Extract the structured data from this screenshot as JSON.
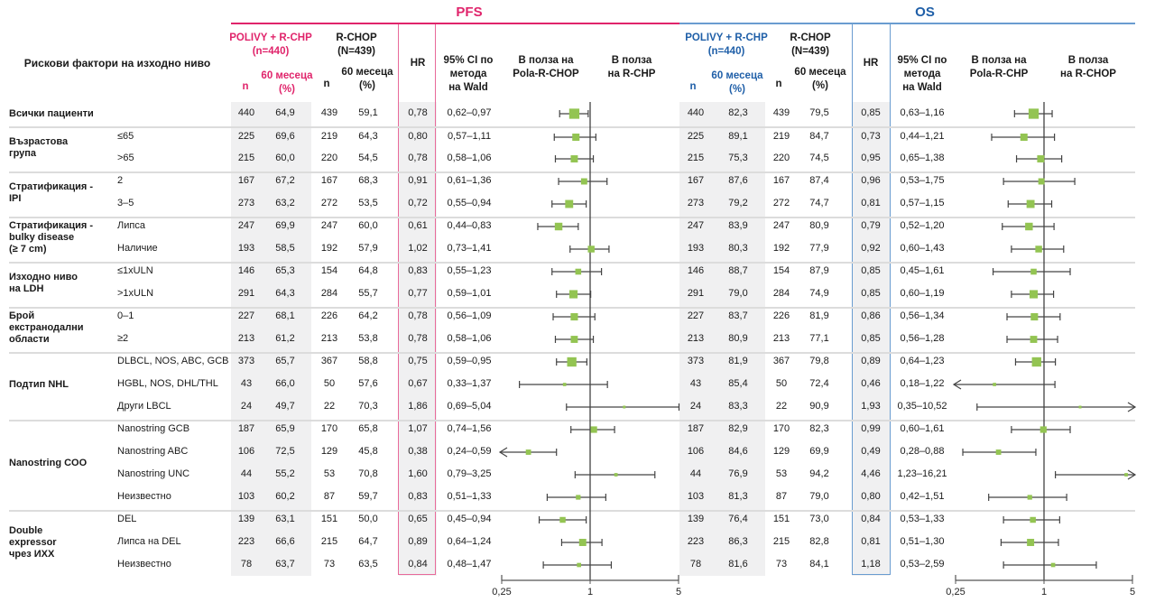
{
  "sections": {
    "pfs": "PFS",
    "os": "OS"
  },
  "header": {
    "risk_factor": "Рискови фактори на изходно ниво",
    "pfs": {
      "arm1": "POLIVY + R-CHP",
      "arm1_n": "(n=440)",
      "arm2": "R-CHOP",
      "arm2_n": "(N=439)",
      "n": "n",
      "m60a": "60 месеца",
      "m60b": "(%)",
      "hr": "HR",
      "ci_a": "95% CI по",
      "ci_b": "метода",
      "ci_c": "на Wald",
      "favor1_a": "В полза на",
      "favor1_b": "Pola-R-CHOP",
      "favor2_a": "В полза",
      "favor2_b": "на R-CHP"
    },
    "os": {
      "arm1": "POLIVY + R-CHP",
      "arm1_n": "(n=440)",
      "arm2": "R-CHOP",
      "arm2_n": "(N=439)",
      "n": "n",
      "m60a": "60 месеца",
      "m60b": "(%)",
      "hr": "HR",
      "ci_a": "95% CI по",
      "ci_b": "метода",
      "ci_c": "на Wald",
      "favor1_a": "В полза на",
      "favor1_b": "Pola-R-CHP",
      "favor2_a": "В полза",
      "favor2_b": "на R-CHOP"
    }
  },
  "groups": [
    {
      "label": [
        "Всички пациенти"
      ],
      "rows": [
        0
      ]
    },
    {
      "label": [
        "Възрастова",
        "група"
      ],
      "rows": [
        1,
        2
      ]
    },
    {
      "label": [
        "Стратификация -",
        "IPI"
      ],
      "rows": [
        3,
        4
      ]
    },
    {
      "label": [
        "Стратификация -",
        "bulky disease",
        "(≥ 7 cm)"
      ],
      "rows": [
        5,
        6
      ]
    },
    {
      "label": [
        "Изходно ниво",
        "на LDH"
      ],
      "rows": [
        7,
        8
      ]
    },
    {
      "label": [
        "Брой",
        "екстранодални",
        "области"
      ],
      "rows": [
        9,
        10
      ]
    },
    {
      "label": [
        "Подтип NHL"
      ],
      "rows": [
        11,
        12,
        13
      ]
    },
    {
      "label": [
        "Nanostring COO"
      ],
      "rows": [
        14,
        15,
        16,
        17
      ]
    },
    {
      "label": [
        "Double",
        "expressor",
        "чрез ИХХ"
      ],
      "rows": [
        18,
        19,
        20
      ]
    }
  ],
  "rows": [
    {
      "sub": "",
      "pfs": {
        "n1": "440",
        "p1": "64,9",
        "n2": "439",
        "p2": "59,1",
        "hr": "0,78",
        "ci": "0,62–0,97"
      },
      "os": {
        "n1": "440",
        "p1": "82,3",
        "n2": "439",
        "p2": "79,5",
        "hr": "0,85",
        "ci": "0,63–1,16"
      }
    },
    {
      "sub": "≤65",
      "pfs": {
        "n1": "225",
        "p1": "69,6",
        "n2": "219",
        "p2": "64,3",
        "hr": "0,80",
        "ci": "0,57–1,11"
      },
      "os": {
        "n1": "225",
        "p1": "89,1",
        "n2": "219",
        "p2": "84,7",
        "hr": "0,73",
        "ci": "0,44–1,21"
      }
    },
    {
      "sub": ">65",
      "pfs": {
        "n1": "215",
        "p1": "60,0",
        "n2": "220",
        "p2": "54,5",
        "hr": "0,78",
        "ci": "0,58–1,06"
      },
      "os": {
        "n1": "215",
        "p1": "75,3",
        "n2": "220",
        "p2": "74,5",
        "hr": "0,95",
        "ci": "0,65–1,38"
      }
    },
    {
      "sub": "2",
      "pfs": {
        "n1": "167",
        "p1": "67,2",
        "n2": "167",
        "p2": "68,3",
        "hr": "0,91",
        "ci": "0,61–1,36"
      },
      "os": {
        "n1": "167",
        "p1": "87,6",
        "n2": "167",
        "p2": "87,4",
        "hr": "0,96",
        "ci": "0,53–1,75"
      }
    },
    {
      "sub": "3–5",
      "pfs": {
        "n1": "273",
        "p1": "63,2",
        "n2": "272",
        "p2": "53,5",
        "hr": "0,72",
        "ci": "0,55–0,94"
      },
      "os": {
        "n1": "273",
        "p1": "79,2",
        "n2": "272",
        "p2": "74,7",
        "hr": "0,81",
        "ci": "0,57–1,15"
      }
    },
    {
      "sub": "Липса",
      "pfs": {
        "n1": "247",
        "p1": "69,9",
        "n2": "247",
        "p2": "60,0",
        "hr": "0,61",
        "ci": "0,44–0,83"
      },
      "os": {
        "n1": "247",
        "p1": "83,9",
        "n2": "247",
        "p2": "80,9",
        "hr": "0,79",
        "ci": "0,52–1,20"
      }
    },
    {
      "sub": "Наличие",
      "pfs": {
        "n1": "193",
        "p1": "58,5",
        "n2": "192",
        "p2": "57,9",
        "hr": "1,02",
        "ci": "0,73–1,41"
      },
      "os": {
        "n1": "193",
        "p1": "80,3",
        "n2": "192",
        "p2": "77,9",
        "hr": "0,92",
        "ci": "0,60–1,43"
      }
    },
    {
      "sub": "≤1xULN",
      "pfs": {
        "n1": "146",
        "p1": "65,3",
        "n2": "154",
        "p2": "64,8",
        "hr": "0,83",
        "ci": "0,55–1,23"
      },
      "os": {
        "n1": "146",
        "p1": "88,7",
        "n2": "154",
        "p2": "87,9",
        "hr": "0,85",
        "ci": "0,45–1,61"
      }
    },
    {
      "sub": ">1xULN",
      "pfs": {
        "n1": "291",
        "p1": "64,3",
        "n2": "284",
        "p2": "55,7",
        "hr": "0,77",
        "ci": "0,59–1,01"
      },
      "os": {
        "n1": "291",
        "p1": "79,0",
        "n2": "284",
        "p2": "74,9",
        "hr": "0,85",
        "ci": "0,60–1,19"
      }
    },
    {
      "sub": "0–1",
      "pfs": {
        "n1": "227",
        "p1": "68,1",
        "n2": "226",
        "p2": "64,2",
        "hr": "0,78",
        "ci": "0,56–1,09"
      },
      "os": {
        "n1": "227",
        "p1": "83,7",
        "n2": "226",
        "p2": "81,9",
        "hr": "0,86",
        "ci": "0,56–1,34"
      }
    },
    {
      "sub": "≥2",
      "pfs": {
        "n1": "213",
        "p1": "61,2",
        "n2": "213",
        "p2": "53,8",
        "hr": "0,78",
        "ci": "0,58–1,06"
      },
      "os": {
        "n1": "213",
        "p1": "80,9",
        "n2": "213",
        "p2": "77,1",
        "hr": "0,85",
        "ci": "0,56–1,28"
      }
    },
    {
      "sub": "DLBCL, NOS, ABC, GCB",
      "pfs": {
        "n1": "373",
        "p1": "65,7",
        "n2": "367",
        "p2": "58,8",
        "hr": "0,75",
        "ci": "0,59–0,95"
      },
      "os": {
        "n1": "373",
        "p1": "81,9",
        "n2": "367",
        "p2": "79,8",
        "hr": "0,89",
        "ci": "0,64–1,23"
      }
    },
    {
      "sub": "HGBL, NOS, DHL/THL",
      "pfs": {
        "n1": "43",
        "p1": "66,0",
        "n2": "50",
        "p2": "57,6",
        "hr": "0,67",
        "ci": "0,33–1,37"
      },
      "os": {
        "n1": "43",
        "p1": "85,4",
        "n2": "50",
        "p2": "72,4",
        "hr": "0,46",
        "ci": "0,18–1,22"
      }
    },
    {
      "sub": "Други LBCL",
      "pfs": {
        "n1": "24",
        "p1": "49,7",
        "n2": "22",
        "p2": "70,3",
        "hr": "1,86",
        "ci": "0,69–5,04"
      },
      "os": {
        "n1": "24",
        "p1": "83,3",
        "n2": "22",
        "p2": "90,9",
        "hr": "1,93",
        "ci": "0,35–10,52"
      }
    },
    {
      "sub": "Nanostring GCB",
      "pfs": {
        "n1": "187",
        "p1": "65,9",
        "n2": "170",
        "p2": "65,8",
        "hr": "1,07",
        "ci": "0,74–1,56"
      },
      "os": {
        "n1": "187",
        "p1": "82,9",
        "n2": "170",
        "p2": "82,3",
        "hr": "0,99",
        "ci": "0,60–1,61"
      }
    },
    {
      "sub": "Nanostring ABC",
      "pfs": {
        "n1": "106",
        "p1": "72,5",
        "n2": "129",
        "p2": "45,8",
        "hr": "0,38",
        "ci": "0,24–0,59"
      },
      "os": {
        "n1": "106",
        "p1": "84,6",
        "n2": "129",
        "p2": "69,9",
        "hr": "0,49",
        "ci": "0,28–0,88"
      }
    },
    {
      "sub": "Nanostring UNC",
      "pfs": {
        "n1": "44",
        "p1": "55,2",
        "n2": "53",
        "p2": "70,8",
        "hr": "1,60",
        "ci": "0,79–3,25"
      },
      "os": {
        "n1": "44",
        "p1": "76,9",
        "n2": "53",
        "p2": "94,2",
        "hr": "4,46",
        "ci": "1,23–16,21"
      }
    },
    {
      "sub": "Неизвестно",
      "pfs": {
        "n1": "103",
        "p1": "60,2",
        "n2": "87",
        "p2": "59,7",
        "hr": "0,83",
        "ci": "0,51–1,33"
      },
      "os": {
        "n1": "103",
        "p1": "81,3",
        "n2": "87",
        "p2": "79,0",
        "hr": "0,80",
        "ci": "0,42–1,51"
      }
    },
    {
      "sub": "DEL",
      "pfs": {
        "n1": "139",
        "p1": "63,1",
        "n2": "151",
        "p2": "50,0",
        "hr": "0,65",
        "ci": "0,45–0,94"
      },
      "os": {
        "n1": "139",
        "p1": "76,4",
        "n2": "151",
        "p2": "73,0",
        "hr": "0,84",
        "ci": "0,53–1,33"
      }
    },
    {
      "sub": "Липса на DEL",
      "pfs": {
        "n1": "223",
        "p1": "66,6",
        "n2": "215",
        "p2": "64,7",
        "hr": "0,89",
        "ci": "0,64–1,24"
      },
      "os": {
        "n1": "223",
        "p1": "86,3",
        "n2": "215",
        "p2": "82,8",
        "hr": "0,81",
        "ci": "0,51–1,30"
      }
    },
    {
      "sub": "Неизвестно",
      "pfs": {
        "n1": "78",
        "p1": "63,7",
        "n2": "73",
        "p2": "63,5",
        "hr": "0,84",
        "ci": "0,48–1,47"
      },
      "os": {
        "n1": "78",
        "p1": "81,6",
        "n2": "73",
        "p2": "84,1",
        "hr": "1,18",
        "ci": "0,53–2,59"
      }
    }
  ],
  "chart_data": [
    {
      "type": "forest",
      "title": "PFS",
      "scale": "log",
      "xlim": [
        0.25,
        5
      ],
      "ticks": [
        "0,25",
        "1",
        "5"
      ],
      "reference_line": 1,
      "xlabel_left": "В полза на Pola-R-CHOP",
      "xlabel_right": "В полза на R-CHP",
      "points": [
        {
          "hr": 0.78,
          "lo": 0.62,
          "hi": 0.97,
          "n": 879
        },
        {
          "hr": 0.8,
          "lo": 0.57,
          "hi": 1.11,
          "n": 444
        },
        {
          "hr": 0.78,
          "lo": 0.58,
          "hi": 1.06,
          "n": 435
        },
        {
          "hr": 0.91,
          "lo": 0.61,
          "hi": 1.36,
          "n": 334
        },
        {
          "hr": 0.72,
          "lo": 0.55,
          "hi": 0.94,
          "n": 545
        },
        {
          "hr": 0.61,
          "lo": 0.44,
          "hi": 0.83,
          "n": 494
        },
        {
          "hr": 1.02,
          "lo": 0.73,
          "hi": 1.41,
          "n": 385
        },
        {
          "hr": 0.83,
          "lo": 0.55,
          "hi": 1.23,
          "n": 300
        },
        {
          "hr": 0.77,
          "lo": 0.59,
          "hi": 1.01,
          "n": 575
        },
        {
          "hr": 0.78,
          "lo": 0.56,
          "hi": 1.09,
          "n": 453
        },
        {
          "hr": 0.78,
          "lo": 0.58,
          "hi": 1.06,
          "n": 426
        },
        {
          "hr": 0.75,
          "lo": 0.59,
          "hi": 0.95,
          "n": 740
        },
        {
          "hr": 0.67,
          "lo": 0.33,
          "hi": 1.37,
          "n": 93
        },
        {
          "hr": 1.86,
          "lo": 0.69,
          "hi": 5.04,
          "n": 46
        },
        {
          "hr": 1.07,
          "lo": 0.74,
          "hi": 1.56,
          "n": 357
        },
        {
          "hr": 0.38,
          "lo": 0.24,
          "hi": 0.59,
          "n": 235
        },
        {
          "hr": 1.6,
          "lo": 0.79,
          "hi": 3.25,
          "n": 97
        },
        {
          "hr": 0.83,
          "lo": 0.51,
          "hi": 1.33,
          "n": 190
        },
        {
          "hr": 0.65,
          "lo": 0.45,
          "hi": 0.94,
          "n": 290
        },
        {
          "hr": 0.89,
          "lo": 0.64,
          "hi": 1.24,
          "n": 438
        },
        {
          "hr": 0.84,
          "lo": 0.48,
          "hi": 1.47,
          "n": 151
        }
      ]
    },
    {
      "type": "forest",
      "title": "OS",
      "scale": "log",
      "xlim": [
        0.25,
        5
      ],
      "ticks": [
        "0,25",
        "1",
        "5"
      ],
      "reference_line": 1,
      "xlabel_left": "В полза на Pola-R-CHP",
      "xlabel_right": "В полза на R-CHOP",
      "points": [
        {
          "hr": 0.85,
          "lo": 0.63,
          "hi": 1.16,
          "n": 879
        },
        {
          "hr": 0.73,
          "lo": 0.44,
          "hi": 1.21,
          "n": 444
        },
        {
          "hr": 0.95,
          "lo": 0.65,
          "hi": 1.38,
          "n": 435
        },
        {
          "hr": 0.96,
          "lo": 0.53,
          "hi": 1.75,
          "n": 334
        },
        {
          "hr": 0.81,
          "lo": 0.57,
          "hi": 1.15,
          "n": 545
        },
        {
          "hr": 0.79,
          "lo": 0.52,
          "hi": 1.2,
          "n": 494
        },
        {
          "hr": 0.92,
          "lo": 0.6,
          "hi": 1.43,
          "n": 385
        },
        {
          "hr": 0.85,
          "lo": 0.45,
          "hi": 1.61,
          "n": 300
        },
        {
          "hr": 0.85,
          "lo": 0.6,
          "hi": 1.19,
          "n": 575
        },
        {
          "hr": 0.86,
          "lo": 0.56,
          "hi": 1.34,
          "n": 453
        },
        {
          "hr": 0.85,
          "lo": 0.56,
          "hi": 1.28,
          "n": 426
        },
        {
          "hr": 0.89,
          "lo": 0.64,
          "hi": 1.23,
          "n": 740
        },
        {
          "hr": 0.46,
          "lo": 0.18,
          "hi": 1.22,
          "n": 93
        },
        {
          "hr": 1.93,
          "lo": 0.35,
          "hi": 10.52,
          "n": 46
        },
        {
          "hr": 0.99,
          "lo": 0.6,
          "hi": 1.61,
          "n": 357
        },
        {
          "hr": 0.49,
          "lo": 0.28,
          "hi": 0.88,
          "n": 235
        },
        {
          "hr": 4.46,
          "lo": 1.23,
          "hi": 16.21,
          "n": 97
        },
        {
          "hr": 0.8,
          "lo": 0.42,
          "hi": 1.51,
          "n": 190
        },
        {
          "hr": 0.84,
          "lo": 0.53,
          "hi": 1.33,
          "n": 290
        },
        {
          "hr": 0.81,
          "lo": 0.51,
          "hi": 1.3,
          "n": 438
        },
        {
          "hr": 1.18,
          "lo": 0.53,
          "hi": 2.59,
          "n": 151
        }
      ]
    }
  ],
  "colors": {
    "pfs": "#e0246b",
    "os": "#1f5fa8",
    "marker": "#93c452",
    "shade": "#f0f0f1"
  }
}
